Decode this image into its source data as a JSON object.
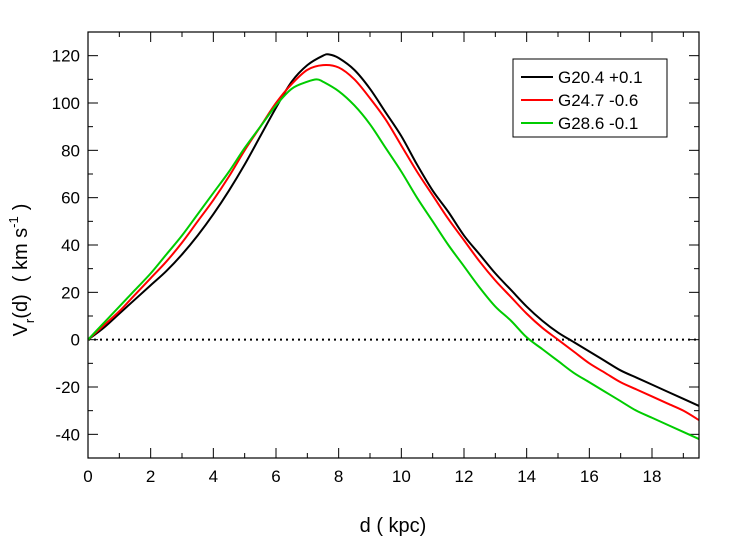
{
  "chart_data": {
    "type": "line",
    "title": "",
    "xlabel": "d ( kpc)",
    "ylabel": {
      "main": "V",
      "subscript": "r",
      "args": "(d)",
      "units_open": "( km s",
      "superscript": "-1",
      "units_close": ")"
    },
    "xlim": [
      0,
      19.5
    ],
    "ylim": [
      -50,
      130
    ],
    "x_ticks": [
      0,
      2,
      4,
      6,
      8,
      10,
      12,
      14,
      16,
      18
    ],
    "y_ticks": [
      -40,
      -20,
      0,
      20,
      40,
      60,
      80,
      100,
      120
    ],
    "x_tick_labels": [
      "0",
      "2",
      "4",
      "6",
      "8",
      "10",
      "12",
      "14",
      "16",
      "18"
    ],
    "y_tick_labels": [
      "-40",
      "-20",
      "0",
      "20",
      "40",
      "60",
      "80",
      "100",
      "120"
    ],
    "reference_line": {
      "y": 0,
      "style": "dotted",
      "color": "#000000"
    },
    "legend_position": "top-right",
    "series": [
      {
        "name": "G20.4 +0.1",
        "color": "#000000",
        "x": [
          0,
          0.5,
          1,
          1.5,
          2,
          2.5,
          3,
          3.5,
          4,
          4.5,
          5,
          5.5,
          6,
          6.5,
          7,
          7.5,
          7.7,
          8,
          8.5,
          9,
          9.5,
          10,
          10.5,
          11,
          11.5,
          12,
          12.5,
          13,
          13.5,
          14,
          14.5,
          15,
          15.5,
          16,
          16.5,
          17,
          17.5,
          18,
          18.5,
          19,
          19.5
        ],
        "values": [
          0,
          5,
          11,
          17,
          23,
          29,
          36,
          44,
          53,
          63,
          74,
          86,
          98,
          109,
          116,
          120,
          120.5,
          119,
          114,
          106,
          96,
          86,
          74,
          63,
          54,
          44,
          36,
          28,
          21,
          14,
          8,
          3,
          -1,
          -5,
          -9,
          -13,
          -16,
          -19,
          -22,
          -25,
          -28
        ]
      },
      {
        "name": "G24.7 -0.6",
        "color": "#ff0000",
        "x": [
          0,
          0.5,
          1,
          1.5,
          2,
          2.5,
          3,
          3.5,
          4,
          4.5,
          5,
          5.5,
          6,
          6.5,
          7,
          7.5,
          8,
          8.5,
          9,
          9.5,
          10,
          10.5,
          11,
          11.5,
          12,
          12.5,
          13,
          13.5,
          14,
          14.5,
          15,
          15.5,
          16,
          16.5,
          17,
          17.5,
          18,
          18.5,
          19,
          19.5
        ],
        "values": [
          0,
          6,
          12,
          19,
          26,
          33,
          41,
          50,
          59,
          69,
          80,
          90,
          100,
          108,
          114,
          116,
          115,
          110,
          102,
          93,
          82,
          71,
          61,
          51,
          42,
          33,
          25,
          18,
          11,
          5,
          0,
          -5,
          -10,
          -14,
          -18,
          -21,
          -24,
          -27,
          -30,
          -34
        ]
      },
      {
        "name": "G28.6 -0.1",
        "color": "#00cc00",
        "x": [
          0,
          0.5,
          1,
          1.5,
          2,
          2.5,
          3,
          3.5,
          4,
          4.5,
          5,
          5.5,
          6,
          6.5,
          7,
          7.3,
          7.5,
          8,
          8.5,
          9,
          9.5,
          10,
          10.5,
          11,
          11.5,
          12,
          12.5,
          13,
          13.5,
          14,
          14.5,
          15,
          15.5,
          16,
          16.5,
          17,
          17.5,
          18,
          18.5,
          19,
          19.5
        ],
        "values": [
          0,
          7,
          14,
          21,
          28,
          36,
          44,
          53,
          62,
          71,
          81,
          90,
          99,
          106,
          109,
          110,
          109,
          105,
          99,
          91,
          81,
          71,
          60,
          50,
          40,
          31,
          22,
          14,
          8,
          1,
          -4,
          -9,
          -14,
          -18,
          -22,
          -26,
          -30,
          -33,
          -36,
          -39,
          -42
        ]
      }
    ]
  }
}
